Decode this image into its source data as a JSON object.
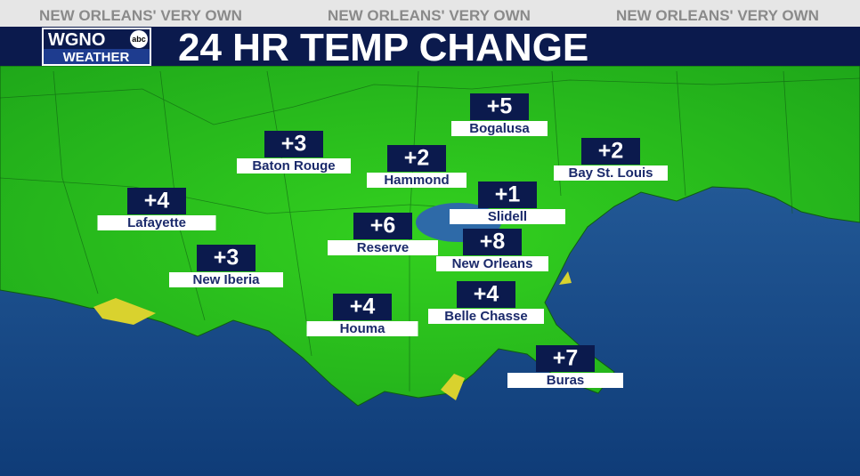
{
  "header": {
    "tagline": [
      "NEW ORLEANS' VERY OWN",
      "NEW ORLEANS' VERY OWN",
      "NEW ORLEANS' VERY OWN"
    ],
    "logo": {
      "station": "WGNO",
      "network": "abc",
      "subtitle": "WEATHER"
    },
    "title": "24 HR TEMP CHANGE"
  },
  "cities": [
    {
      "name": "Bogalusa",
      "change": "+5"
    },
    {
      "name": "Baton Rouge",
      "change": "+3"
    },
    {
      "name": "Hammond",
      "change": "+2"
    },
    {
      "name": "Bay St. Louis",
      "change": "+2"
    },
    {
      "name": "Lafayette",
      "change": "+4"
    },
    {
      "name": "Slidell",
      "change": "+1"
    },
    {
      "name": "Reserve",
      "change": "+6"
    },
    {
      "name": "New Orleans",
      "change": "+8"
    },
    {
      "name": "New Iberia",
      "change": "+3"
    },
    {
      "name": "Houma",
      "change": "+4"
    },
    {
      "name": "Belle Chasse",
      "change": "+4"
    },
    {
      "name": "Buras",
      "change": "+7"
    }
  ]
}
